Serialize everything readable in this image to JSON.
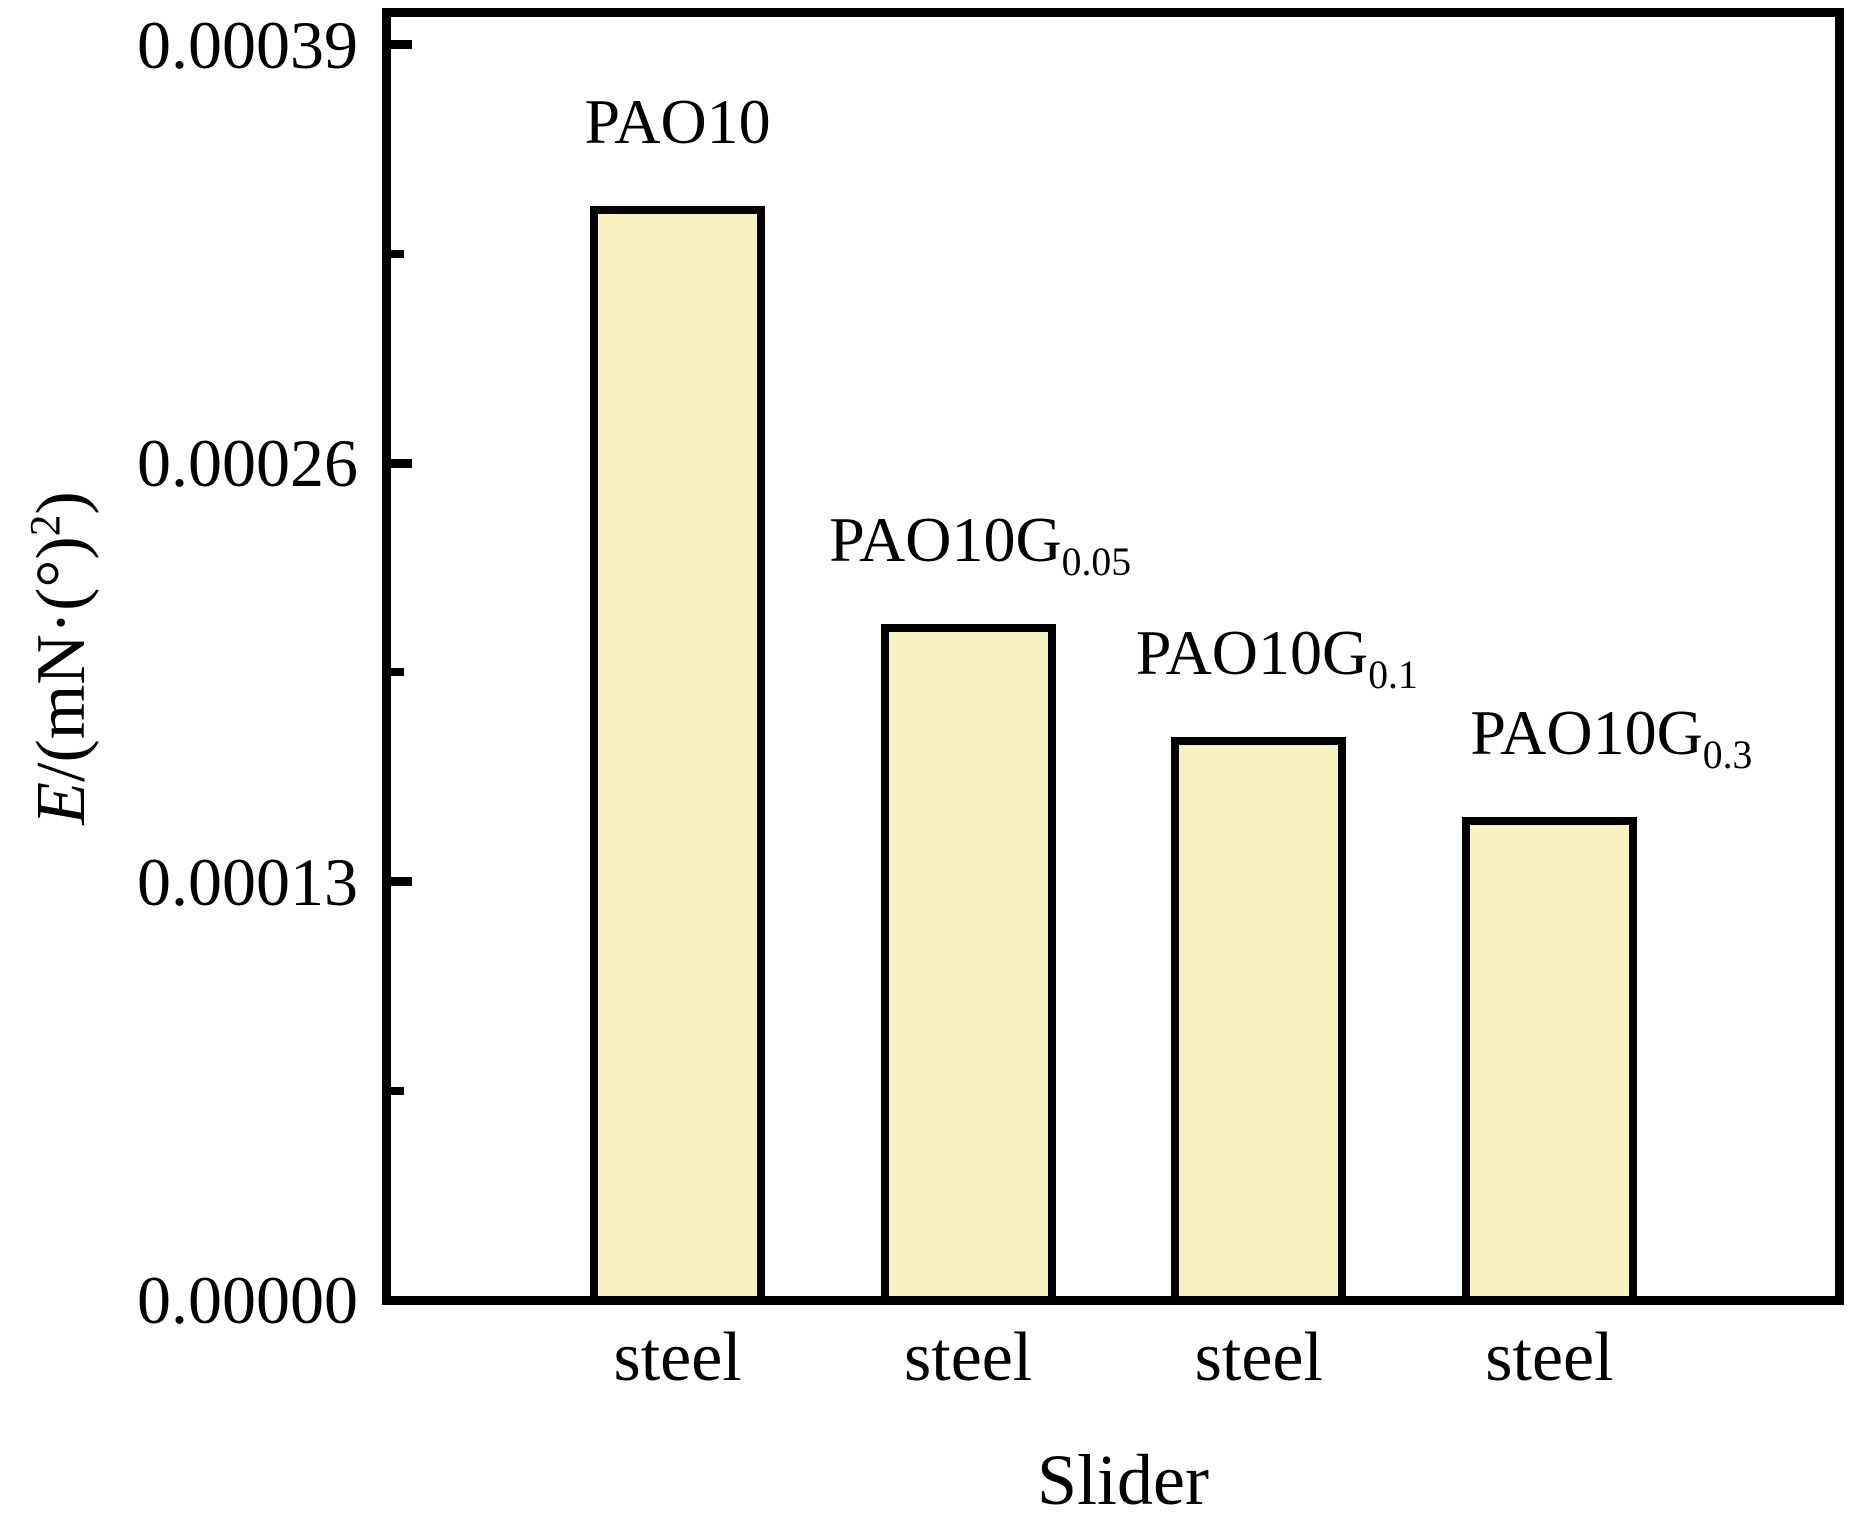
{
  "chart_data": {
    "type": "bar",
    "title": "",
    "xlabel": "Slider",
    "ylabel": "E/(mN·(°)²)",
    "ylabel_parts": {
      "italic": "E",
      "mid": "/(mN·(°)",
      "sup": "2",
      "end": ")"
    },
    "categories": [
      "steel",
      "steel",
      "steel",
      "steel"
    ],
    "values": [
      0.00034,
      0.00021,
      0.000175,
      0.00015
    ],
    "bar_annotations": [
      {
        "main": "PAO10",
        "sub": ""
      },
      {
        "main": "PAO10G",
        "sub": "0.05"
      },
      {
        "main": "PAO10G",
        "sub": "0.1"
      },
      {
        "main": "PAO10G",
        "sub": "0.3"
      }
    ],
    "yticks": {
      "values": [
        0,
        0.00013,
        0.00026,
        0.00039
      ],
      "labels": [
        "0.00000",
        "0.00013",
        "0.00026",
        "0.00039"
      ]
    },
    "minor_yticks": [
      6.5e-05,
      0.000195,
      0.000325
    ],
    "ylim": [
      0,
      0.0004
    ],
    "grid": false,
    "legend": null,
    "colors": {
      "bar_fill": "#F7F2BE",
      "bar_border": "#000000",
      "axis": "#000000",
      "text": "#000000",
      "background": "#FFFFFF"
    }
  }
}
